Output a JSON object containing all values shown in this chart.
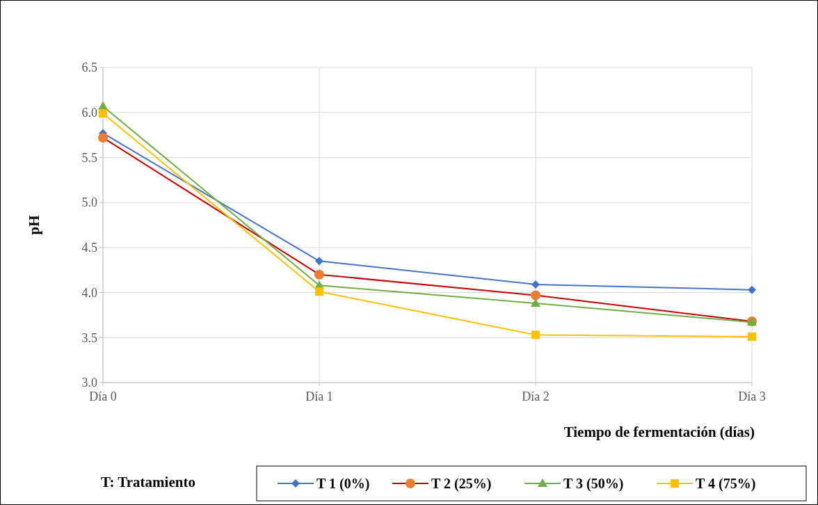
{
  "chart_data": {
    "type": "line",
    "xlabel": "Tiempo de fermentación (días)",
    "ylabel": "pH",
    "categories": [
      "Día 0",
      "Día 1",
      "Día 2",
      "Día 3"
    ],
    "series": [
      {
        "name": "T 1 (0%)",
        "color": "#4472c4",
        "marker": "diamond",
        "values": [
          5.77,
          4.35,
          4.09,
          4.03
        ]
      },
      {
        "name": "T 2 (25%)",
        "color": "#c00000",
        "marker": "circle",
        "values": [
          5.72,
          4.2,
          3.97,
          3.68
        ]
      },
      {
        "name": "T 3 (50%)",
        "color": "#70ad47",
        "marker": "triangle",
        "values": [
          6.07,
          4.08,
          3.88,
          3.67
        ]
      },
      {
        "name": "T 4 (75%)",
        "color": "#ffc000",
        "marker": "square",
        "values": [
          5.99,
          4.01,
          3.53,
          3.51
        ]
      }
    ],
    "ylim": [
      3,
      6.5
    ],
    "yticks": [
      {
        "value": 3,
        "label": "3.0"
      },
      {
        "value": 3.5,
        "label": "3.5"
      },
      {
        "value": 4,
        "label": "4.0"
      },
      {
        "value": 4.5,
        "label": "4.5"
      },
      {
        "value": 5,
        "label": "5.0"
      },
      {
        "value": 5.5,
        "label": "5.5"
      },
      {
        "value": 6,
        "label": "6.0"
      },
      {
        "value": 6.5,
        "label": "6.5"
      }
    ],
    "grid": true,
    "legend": "bottom",
    "line_style": "solid",
    "annotations": [
      "T: Tratamiento"
    ]
  }
}
